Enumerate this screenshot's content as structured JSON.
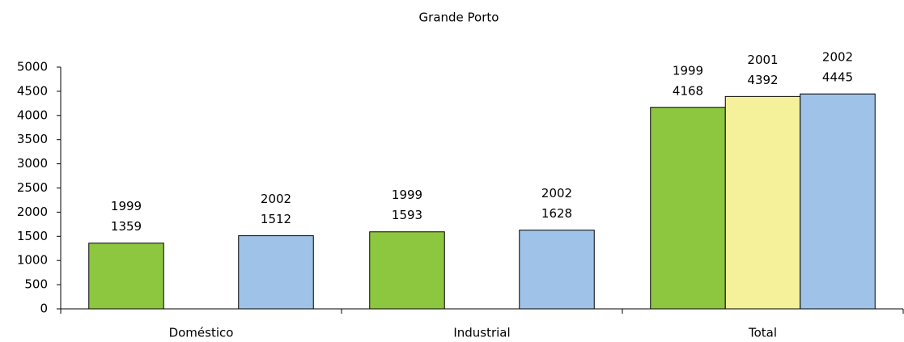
{
  "chart_data": {
    "type": "bar",
    "title": "Grande Porto",
    "categories": [
      "Doméstico",
      "Industrial",
      "Total"
    ],
    "series": [
      {
        "name": "1999",
        "color": "#8dc63f",
        "values": [
          1359,
          1593,
          4168
        ]
      },
      {
        "name": "2001",
        "color": "#f5f19a",
        "values": [
          null,
          null,
          4392
        ]
      },
      {
        "name": "2002",
        "color": "#9fc3e8",
        "values": [
          1512,
          1628,
          4445
        ]
      }
    ],
    "ylim": [
      0,
      5000
    ],
    "yticks": [
      0,
      500,
      1000,
      1500,
      2000,
      2500,
      3000,
      3500,
      4000,
      4500,
      5000
    ],
    "grid": false
  }
}
